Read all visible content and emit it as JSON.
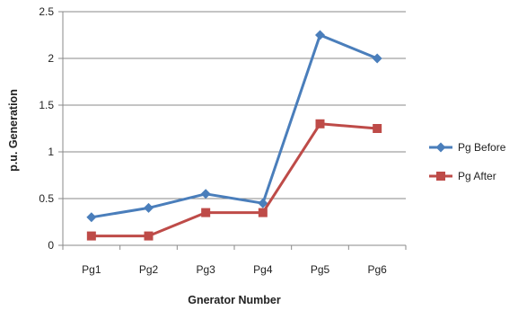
{
  "chart_data": {
    "type": "line",
    "title": "",
    "xlabel": "Gnerator Number",
    "ylabel": "p.u. Generation",
    "categories": [
      "Pg1",
      "Pg2",
      "Pg3",
      "Pg4",
      "Pg5",
      "Pg6"
    ],
    "ylim": [
      0,
      2.5
    ],
    "yticks": [
      "0",
      "0.5",
      "1",
      "1.5",
      "2",
      "2.5"
    ],
    "grid": true,
    "legend_position": "right",
    "series": [
      {
        "name": "Pg Before",
        "color": "#4a7ebb",
        "marker": "diamond",
        "values": [
          0.3,
          0.4,
          0.55,
          0.45,
          2.25,
          2.0
        ]
      },
      {
        "name": "Pg After",
        "color": "#be4b48",
        "marker": "square",
        "values": [
          0.1,
          0.1,
          0.35,
          0.35,
          1.3,
          1.25
        ]
      }
    ]
  }
}
